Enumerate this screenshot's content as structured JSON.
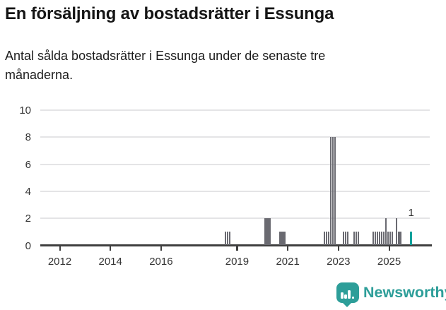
{
  "chart_data": {
    "type": "bar",
    "title": "En försäljning av bostadsrätter i Essunga",
    "subtitle_lines": [
      "Antal sålda bostadsrätter i Essunga under de senaste tre",
      "månaderna."
    ],
    "xlabel": "",
    "ylabel": "",
    "ylim": [
      0,
      10
    ],
    "y_axis": {
      "ticks": [
        0,
        2,
        4,
        6,
        8,
        10
      ]
    },
    "x_axis": {
      "tick_years": [
        2012,
        2014,
        2016,
        2019,
        2021,
        2023,
        2025
      ]
    },
    "grid": "horizontal",
    "legend": "none",
    "current_value_label": "1",
    "bars": [
      {
        "month": "2018-07",
        "value": 1
      },
      {
        "month": "2018-08",
        "value": 1
      },
      {
        "month": "2018-09",
        "value": 1
      },
      {
        "month": "2020-02",
        "value": 2
      },
      {
        "month": "2020-03",
        "value": 2
      },
      {
        "month": "2020-04",
        "value": 2
      },
      {
        "month": "2020-09",
        "value": 1
      },
      {
        "month": "2020-10",
        "value": 1
      },
      {
        "month": "2020-11",
        "value": 1
      },
      {
        "month": "2022-06",
        "value": 1
      },
      {
        "month": "2022-07",
        "value": 1
      },
      {
        "month": "2022-08",
        "value": 1
      },
      {
        "month": "2022-09",
        "value": 8
      },
      {
        "month": "2022-10",
        "value": 8
      },
      {
        "month": "2022-11",
        "value": 8
      },
      {
        "month": "2023-03",
        "value": 1
      },
      {
        "month": "2023-04",
        "value": 1
      },
      {
        "month": "2023-05",
        "value": 1
      },
      {
        "month": "2023-08",
        "value": 1
      },
      {
        "month": "2023-09",
        "value": 1
      },
      {
        "month": "2023-10",
        "value": 1
      },
      {
        "month": "2024-05",
        "value": 1
      },
      {
        "month": "2024-06",
        "value": 1
      },
      {
        "month": "2024-07",
        "value": 1
      },
      {
        "month": "2024-08",
        "value": 1
      },
      {
        "month": "2024-09",
        "value": 1
      },
      {
        "month": "2024-10",
        "value": 1
      },
      {
        "month": "2024-11",
        "value": 2
      },
      {
        "month": "2024-12",
        "value": 1
      },
      {
        "month": "2025-01",
        "value": 1
      },
      {
        "month": "2025-02",
        "value": 1
      },
      {
        "month": "2025-04",
        "value": 2
      },
      {
        "month": "2025-05",
        "value": 1
      },
      {
        "month": "2025-06",
        "value": 1
      },
      {
        "month": "2025-11",
        "value": 1,
        "highlight": true,
        "label": "1"
      }
    ],
    "colors": {
      "bar": "#6a6a71",
      "highlight": "#12a19b",
      "axis": "#3f3f3f",
      "gridline": "#e4e4e6",
      "text": "#343434"
    }
  },
  "footer": {
    "brand": "Newsworthy",
    "brand_color": "#2d9e99",
    "icon": "speech-bubble-bar-chart-icon"
  }
}
